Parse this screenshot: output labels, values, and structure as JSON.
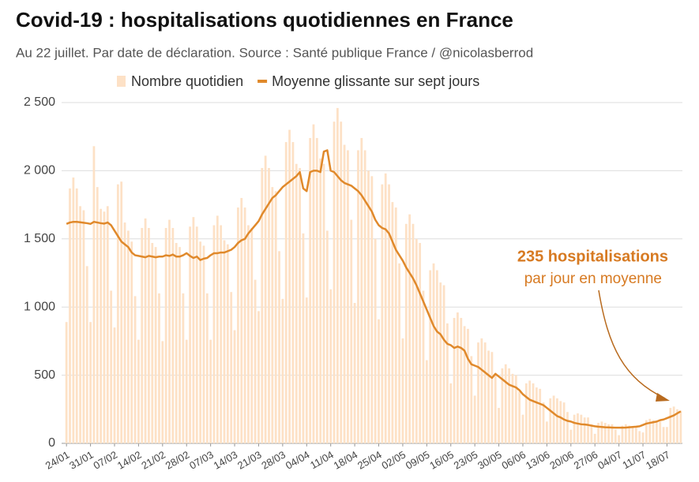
{
  "chart_data": {
    "type": "bar_line",
    "title": "Covid-19 : hospitalisations quotidiennes en France",
    "subtitle": "Au 22 juillet. Par date de déclaration. Source : Santé publique France / @nicolasberrod",
    "annotation": {
      "title": "235 hospitalisations",
      "text": "par jour en moyenne"
    },
    "categories": [
      "24/01",
      null,
      null,
      null,
      null,
      null,
      null,
      "31/01",
      null,
      null,
      null,
      null,
      null,
      null,
      "07/02",
      null,
      null,
      null,
      null,
      null,
      null,
      "14/02",
      null,
      null,
      null,
      null,
      null,
      null,
      "21/02",
      null,
      null,
      null,
      null,
      null,
      null,
      "28/02",
      null,
      null,
      null,
      null,
      null,
      null,
      "07/03",
      null,
      null,
      null,
      null,
      null,
      null,
      "14/03",
      null,
      null,
      null,
      null,
      null,
      null,
      "21/03",
      null,
      null,
      null,
      null,
      null,
      null,
      "28/03",
      null,
      null,
      null,
      null,
      null,
      null,
      "04/04",
      null,
      null,
      null,
      null,
      null,
      null,
      "11/04",
      null,
      null,
      null,
      null,
      null,
      null,
      "18/04",
      null,
      null,
      null,
      null,
      null,
      null,
      "25/04",
      null,
      null,
      null,
      null,
      null,
      null,
      "02/05",
      null,
      null,
      null,
      null,
      null,
      null,
      "09/05",
      null,
      null,
      null,
      null,
      null,
      null,
      "16/05",
      null,
      null,
      null,
      null,
      null,
      null,
      "23/05",
      null,
      null,
      null,
      null,
      null,
      null,
      "30/05",
      null,
      null,
      null,
      null,
      null,
      null,
      "06/06",
      null,
      null,
      null,
      null,
      null,
      null,
      "13/06",
      null,
      null,
      null,
      null,
      null,
      null,
      "20/06",
      null,
      null,
      null,
      null,
      null,
      null,
      "27/06",
      null,
      null,
      null,
      null,
      null,
      null,
      "04/07",
      null,
      null,
      null,
      null,
      null,
      null,
      "11/07",
      null,
      null,
      null,
      null,
      null,
      null,
      "18/07",
      null,
      null,
      null,
      null
    ],
    "series": [
      {
        "name": "Nombre quotidien",
        "type": "bar",
        "color": "#fde1c6",
        "values": [
          890,
          1870,
          1950,
          1870,
          1740,
          1710,
          1300,
          890,
          2180,
          1880,
          1720,
          1700,
          1740,
          1120,
          850,
          1900,
          1920,
          1620,
          1560,
          1480,
          1080,
          760,
          1580,
          1650,
          1580,
          1470,
          1440,
          1100,
          750,
          1580,
          1640,
          1580,
          1470,
          1440,
          1100,
          760,
          1590,
          1660,
          1590,
          1480,
          1450,
          1100,
          760,
          1600,
          1670,
          1600,
          1490,
          1460,
          1110,
          830,
          1730,
          1800,
          1730,
          1600,
          1580,
          1200,
          970,
          2020,
          2110,
          2020,
          1880,
          1850,
          1410,
          1060,
          2210,
          2300,
          2210,
          2050,
          2020,
          1540,
          1070,
          2240,
          2340,
          2240,
          2090,
          2050,
          1560,
          1130,
          2360,
          2460,
          2360,
          2190,
          2150,
          1640,
          1030,
          2150,
          2240,
          2150,
          2000,
          1960,
          1500,
          910,
          1900,
          1980,
          1900,
          1770,
          1730,
          1320,
          770,
          1610,
          1680,
          1610,
          1500,
          1470,
          1120,
          610,
          1270,
          1320,
          1270,
          1180,
          1160,
          880,
          440,
          920,
          960,
          920,
          860,
          840,
          640,
          350,
          740,
          770,
          740,
          680,
          670,
          510,
          260,
          550,
          580,
          550,
          510,
          500,
          380,
          210,
          440,
          460,
          440,
          410,
          400,
          300,
          160,
          330,
          350,
          330,
          310,
          300,
          230,
          100,
          210,
          220,
          210,
          190,
          190,
          140,
          70,
          150,
          160,
          150,
          140,
          140,
          100,
          60,
          130,
          140,
          130,
          120,
          120,
          90,
          80,
          170,
          180,
          170,
          160,
          160,
          120,
          120,
          260,
          270,
          250,
          240
        ]
      },
      {
        "name": "Moyenne glissante sur sept jours",
        "type": "line",
        "color": "#e0892b",
        "values": [
          1610,
          1620,
          1625,
          1625,
          1622,
          1618,
          1615,
          1610,
          1625,
          1620,
          1615,
          1612,
          1620,
          1600,
          1560,
          1520,
          1480,
          1460,
          1440,
          1400,
          1380,
          1375,
          1370,
          1365,
          1375,
          1370,
          1365,
          1370,
          1370,
          1380,
          1375,
          1385,
          1370,
          1370,
          1380,
          1395,
          1375,
          1360,
          1370,
          1345,
          1355,
          1360,
          1380,
          1395,
          1395,
          1400,
          1400,
          1410,
          1420,
          1440,
          1470,
          1490,
          1500,
          1540,
          1570,
          1600,
          1630,
          1680,
          1720,
          1760,
          1800,
          1820,
          1850,
          1880,
          1900,
          1920,
          1940,
          1960,
          1990,
          1870,
          1850,
          1990,
          2000,
          2000,
          1990,
          2140,
          2150,
          2000,
          1990,
          1960,
          1930,
          1910,
          1900,
          1890,
          1870,
          1850,
          1820,
          1780,
          1740,
          1700,
          1640,
          1600,
          1580,
          1570,
          1540,
          1480,
          1420,
          1380,
          1340,
          1290,
          1250,
          1210,
          1160,
          1100,
          1040,
          980,
          920,
          860,
          820,
          800,
          760,
          730,
          720,
          700,
          710,
          700,
          680,
          620,
          580,
          570,
          560,
          540,
          520,
          500,
          480,
          510,
          490,
          470,
          450,
          430,
          420,
          410,
          390,
          360,
          340,
          320,
          310,
          300,
          290,
          280,
          260,
          240,
          220,
          200,
          190,
          175,
          165,
          160,
          150,
          145,
          140,
          138,
          135,
          130,
          125,
          122,
          120,
          118,
          117,
          116,
          115,
          115,
          115,
          116,
          118,
          120,
          122,
          125,
          135,
          145,
          150,
          155,
          160,
          170,
          175,
          185,
          195,
          205,
          220,
          235
        ]
      }
    ],
    "ylim": [
      0,
      2500
    ],
    "yticks": [
      0,
      500,
      {
        "value": 1000,
        "label": "1 000"
      },
      {
        "value": 1500,
        "label": "1 500"
      },
      {
        "value": 2000,
        "label": "2 000"
      },
      {
        "value": 2500,
        "label": "2 500"
      }
    ],
    "grid": true,
    "legend": "top"
  }
}
